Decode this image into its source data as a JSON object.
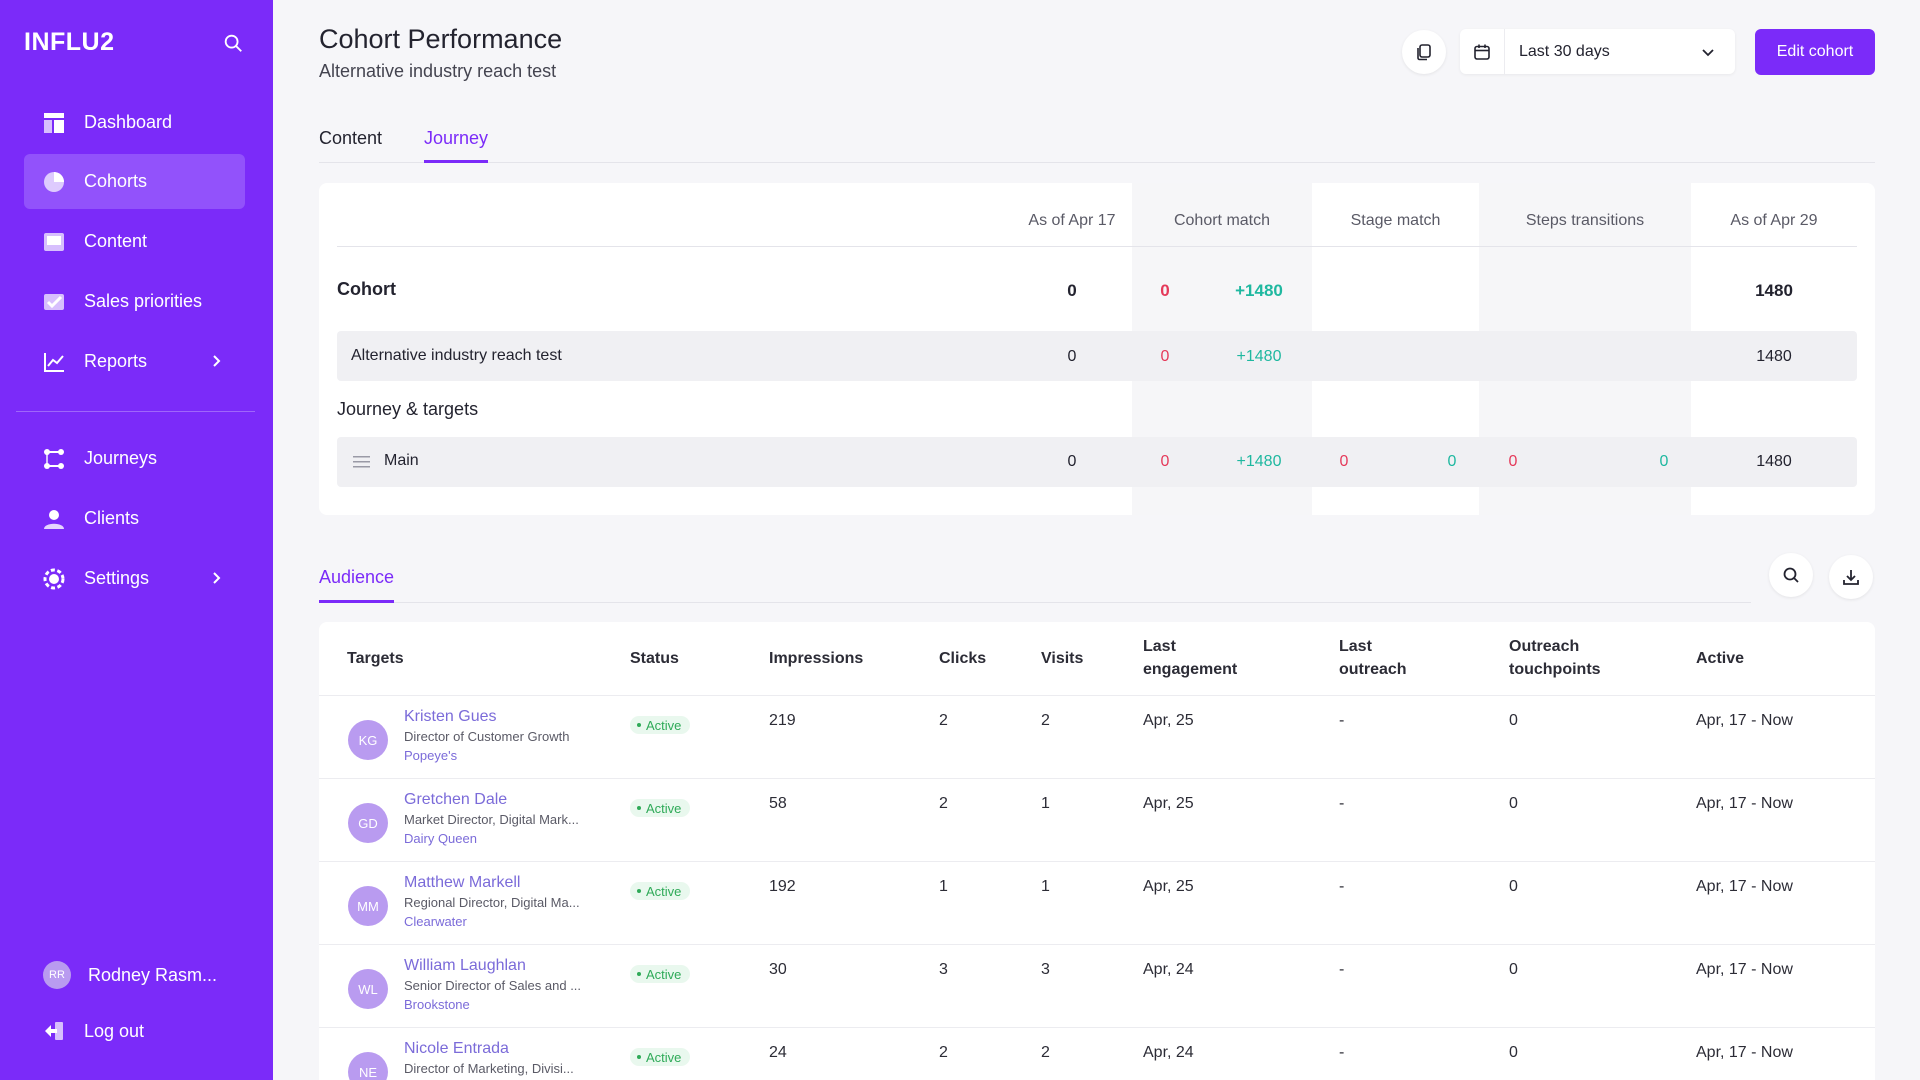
{
  "brand": "INFLU2",
  "sidebar": {
    "nav": [
      {
        "label": "Dashboard",
        "icon": "dashboard-icon"
      },
      {
        "label": "Cohorts",
        "icon": "pie-chart-icon",
        "active": true
      },
      {
        "label": "Content",
        "icon": "content-icon"
      },
      {
        "label": "Sales priorities",
        "icon": "checkbox-icon"
      },
      {
        "label": "Reports",
        "icon": "line-chart-icon",
        "has_submenu": true
      }
    ],
    "nav2": [
      {
        "label": "Journeys",
        "icon": "journey-icon"
      },
      {
        "label": "Clients",
        "icon": "clients-icon"
      },
      {
        "label": "Settings",
        "icon": "gear-icon",
        "has_submenu": true
      }
    ],
    "user": {
      "initials": "RR",
      "name": "Rodney Rasm..."
    },
    "logout": "Log out"
  },
  "header": {
    "title": "Cohort Performance",
    "subtitle": "Alternative industry reach test",
    "date_range": "Last 30 days",
    "edit_label": "Edit cohort"
  },
  "tabs": [
    {
      "label": "Content",
      "active": false
    },
    {
      "label": "Journey",
      "active": true
    }
  ],
  "journey": {
    "columns": [
      "As of Apr 17",
      "Cohort match",
      "Stage match",
      "Steps transitions",
      "As of Apr 29"
    ],
    "cohort_label": "Cohort",
    "cohort_row": {
      "start": "0",
      "cm_out": "0",
      "cm_in": "+1480",
      "end": "1480"
    },
    "cohort_item": {
      "label": "Alternative industry reach test",
      "start": "0",
      "cm_out": "0",
      "cm_in": "+1480",
      "end": "1480"
    },
    "journey_label": "Journey & targets",
    "journey_item": {
      "label": "Main",
      "start": "0",
      "cm_out": "0",
      "cm_in": "+1480",
      "sm_out": "0",
      "sm_in": "0",
      "st_out": "0",
      "st_in": "0",
      "end": "1480"
    }
  },
  "audience": {
    "tab": "Audience",
    "columns": [
      "Targets",
      "Status",
      "Impressions",
      "Clicks",
      "Visits",
      "Last engagement",
      "Last outreach",
      "Outreach touchpoints",
      "Active"
    ],
    "rows": [
      {
        "initials": "KG",
        "name": "Kristen Gues",
        "title": "Director of Customer Growth",
        "company": "Popeye's",
        "status": "Active",
        "impressions": "219",
        "clicks": "2",
        "visits": "2",
        "last_engagement": "Apr, 25",
        "last_outreach": "-",
        "touchpoints": "0",
        "active": "Apr, 17 - Now"
      },
      {
        "initials": "GD",
        "name": "Gretchen Dale",
        "title": "Market Director, Digital Mark...",
        "company": "Dairy Queen",
        "status": "Active",
        "impressions": "58",
        "clicks": "2",
        "visits": "1",
        "last_engagement": "Apr, 25",
        "last_outreach": "-",
        "touchpoints": "0",
        "active": "Apr, 17 - Now"
      },
      {
        "initials": "MM",
        "name": "Matthew Markell",
        "title": "Regional Director, Digital Ma...",
        "company": "Clearwater",
        "status": "Active",
        "impressions": "192",
        "clicks": "1",
        "visits": "1",
        "last_engagement": "Apr, 25",
        "last_outreach": "-",
        "touchpoints": "0",
        "active": "Apr, 17 - Now"
      },
      {
        "initials": "WL",
        "name": "William Laughlan",
        "title": "Senior Director of Sales and ...",
        "company": "Brookstone",
        "status": "Active",
        "impressions": "30",
        "clicks": "3",
        "visits": "3",
        "last_engagement": "Apr, 24",
        "last_outreach": "-",
        "touchpoints": "0",
        "active": "Apr, 17 - Now"
      },
      {
        "initials": "NE",
        "name": "Nicole Entrada",
        "title": "Director of Marketing, Divisi...",
        "company": "",
        "status": "Active",
        "impressions": "24",
        "clicks": "2",
        "visits": "2",
        "last_engagement": "Apr, 24",
        "last_outreach": "-",
        "touchpoints": "0",
        "active": "Apr, 17 - Now"
      }
    ]
  },
  "colors": {
    "accent": "#7b2bf9",
    "positive": "#1fb8a0",
    "negative": "#e53a5a",
    "status_active": "#2faa58"
  }
}
